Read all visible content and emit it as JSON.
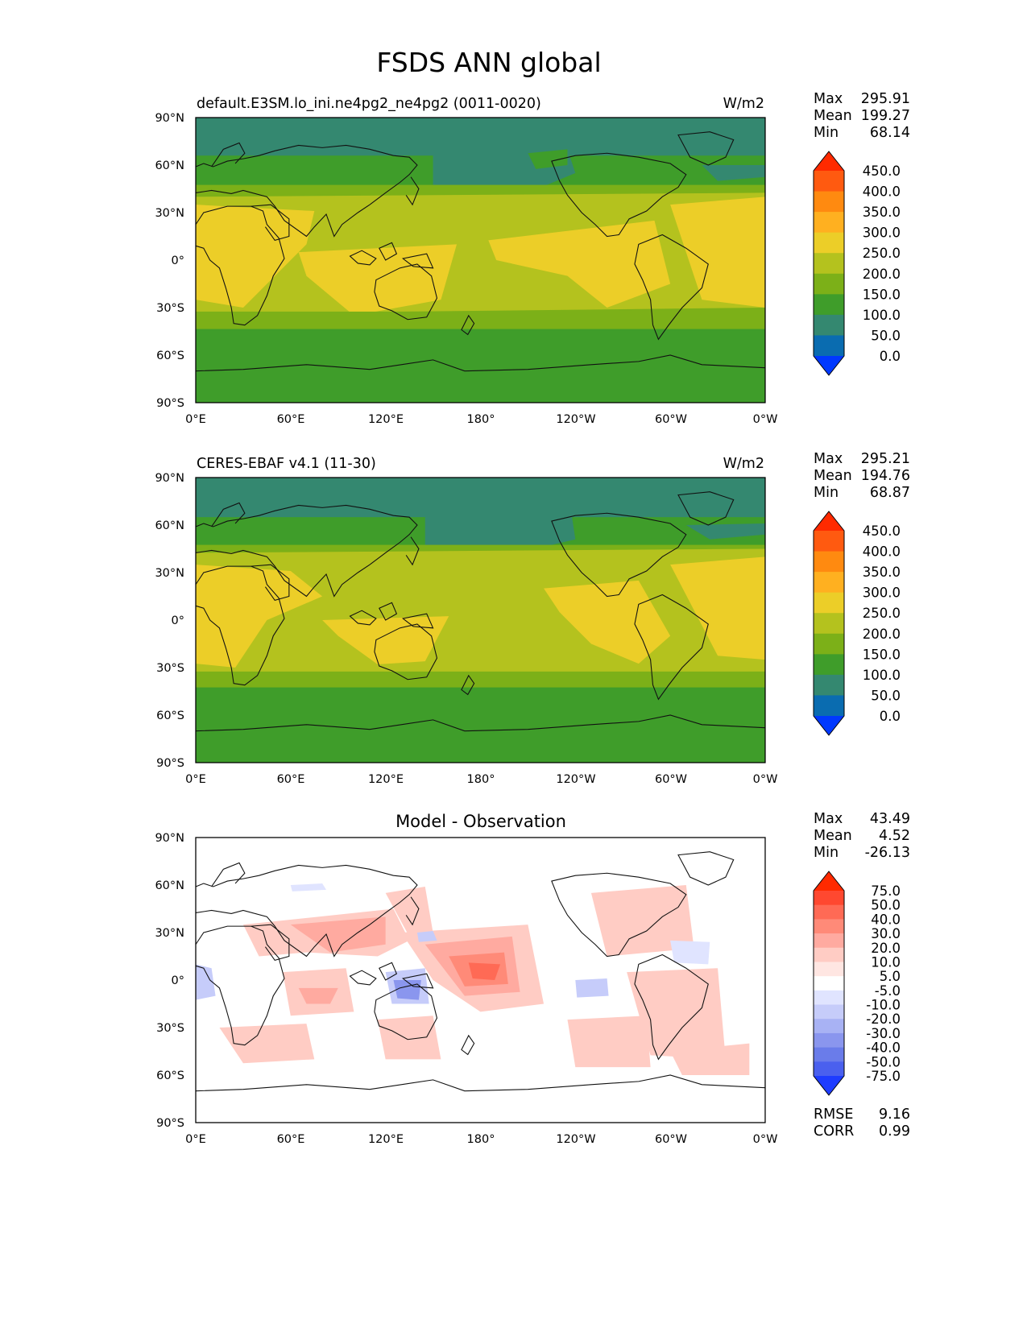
{
  "title": "FSDS ANN global",
  "axes": {
    "lon_ticks": [
      "0°E",
      "60°E",
      "120°E",
      "180°",
      "120°W",
      "60°W",
      "0°W"
    ],
    "lat_ticks": [
      "90°N",
      "60°N",
      "30°N",
      "0°",
      "30°S",
      "60°S",
      "90°S"
    ]
  },
  "panels": [
    {
      "id": "model",
      "left_title": "default.E3SM.lo_ini.ne4pg2_ne4pg2 (0011-0020)",
      "center_title": "",
      "units": "W/m2",
      "stats": [
        {
          "label": "Max",
          "value": "295.91"
        },
        {
          "label": "Mean",
          "value": "199.27"
        },
        {
          "label": "Min",
          "value": "68.14"
        }
      ],
      "colorbar": {
        "labels": [
          "450.0",
          "400.0",
          "350.0",
          "300.0",
          "250.0",
          "200.0",
          "150.0",
          "100.0",
          "50.0",
          "0.0"
        ],
        "colors": [
          "#ff2a00",
          "#ff5a10",
          "#ff8a10",
          "#ffb020",
          "#ecce28",
          "#b4c21e",
          "#7cb018",
          "#3f9d2a",
          "#348870",
          "#0a6cb0",
          "#0038ff"
        ]
      }
    },
    {
      "id": "obs",
      "left_title": "CERES-EBAF v4.1 (11-30)",
      "center_title": "",
      "units": "W/m2",
      "stats": [
        {
          "label": "Max",
          "value": "295.21"
        },
        {
          "label": "Mean",
          "value": "194.76"
        },
        {
          "label": "Min",
          "value": "68.87"
        }
      ],
      "colorbar": {
        "labels": [
          "450.0",
          "400.0",
          "350.0",
          "300.0",
          "250.0",
          "200.0",
          "150.0",
          "100.0",
          "50.0",
          "0.0"
        ],
        "colors": [
          "#ff2a00",
          "#ff5a10",
          "#ff8a10",
          "#ffb020",
          "#ecce28",
          "#b4c21e",
          "#7cb018",
          "#3f9d2a",
          "#348870",
          "#0a6cb0",
          "#0038ff"
        ]
      }
    },
    {
      "id": "diff",
      "left_title": "",
      "center_title": "Model - Observation",
      "units": "",
      "stats": [
        {
          "label": "Max",
          "value": "43.49"
        },
        {
          "label": "Mean",
          "value": "4.52"
        },
        {
          "label": "Min",
          "value": "-26.13"
        }
      ],
      "colorbar": {
        "labels": [
          "75.0",
          "50.0",
          "40.0",
          "30.0",
          "20.0",
          "10.0",
          "5.0",
          "-5.0",
          "-10.0",
          "-20.0",
          "-30.0",
          "-40.0",
          "-50.0",
          "-75.0"
        ],
        "colors": [
          "#ff2a00",
          "#ff4830",
          "#ff6a55",
          "#ff8a78",
          "#ffaaa0",
          "#ffccc4",
          "#ffe6e2",
          "#ffffff",
          "#e0e4ff",
          "#c6ccfa",
          "#a8b2f4",
          "#8a96ee",
          "#6a7cea",
          "#4a60ee",
          "#1e3cff"
        ]
      },
      "extra_stats": [
        {
          "label": "RMSE",
          "value": "9.16"
        },
        {
          "label": "CORR",
          "value": "0.99"
        }
      ]
    }
  ]
}
